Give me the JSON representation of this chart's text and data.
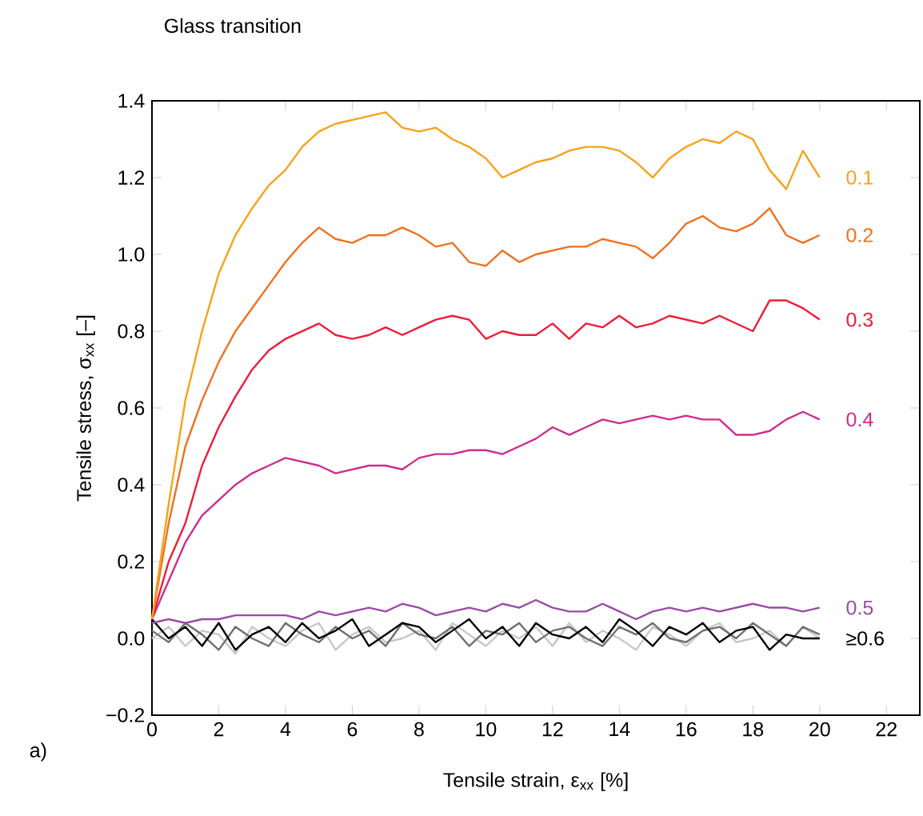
{
  "chart_data": {
    "type": "line",
    "title": "Glass transition",
    "xlabel": "Tensile strain, ε$_{xx}$ [%]",
    "ylabel": "Tensile stress, σ$_{xx}$ [–]",
    "annotations": [
      "a)"
    ],
    "x": [
      0,
      0.5,
      1,
      1.5,
      2,
      2.5,
      3,
      3.5,
      4,
      4.5,
      5,
      5.5,
      6,
      6.5,
      7,
      7.5,
      8,
      8.5,
      9,
      9.5,
      10,
      10.5,
      11,
      11.5,
      12,
      12.5,
      13,
      13.5,
      14,
      14.5,
      15,
      15.5,
      16,
      16.5,
      17,
      17.5,
      18,
      18.5,
      19,
      19.5,
      20
    ],
    "xlim": [
      0,
      23
    ],
    "xticks": [
      0,
      2,
      4,
      6,
      8,
      10,
      12,
      14,
      16,
      18,
      20,
      22
    ],
    "ylim": [
      -0.2,
      1.4
    ],
    "yticks": [
      {
        "value": -0.2,
        "label": "−0.2"
      },
      {
        "value": 0,
        "label": "0.0"
      },
      {
        "value": 0.2,
        "label": "0.2"
      },
      {
        "value": 0.4,
        "label": "0.4"
      },
      {
        "value": 0.6,
        "label": "0.6"
      },
      {
        "value": 0.8,
        "label": "0.8"
      },
      {
        "value": 1.0,
        "label": "1.0"
      },
      {
        "value": 1.2,
        "label": "1.2"
      },
      {
        "value": 1.4,
        "label": "1.4"
      }
    ],
    "series": [
      {
        "color": "#c8c8c8",
        "values": [
          0.0,
          0.03,
          -0.02,
          0.02,
          0.01,
          -0.04,
          0.03,
          0.0,
          -0.02,
          0.02,
          0.04,
          -0.03,
          0.01,
          0.03,
          -0.01,
          0.0,
          0.02,
          -0.03,
          0.04,
          0.01,
          -0.02,
          0.02,
          0.0,
          0.03,
          -0.02,
          0.04,
          -0.01,
          0.02,
          0.0,
          -0.03,
          0.03,
          0.01,
          -0.02,
          0.02,
          0.04,
          -0.01,
          0.0,
          0.02,
          -0.02,
          0.03,
          0.0
        ]
      },
      {
        "color": "#707070",
        "values": [
          0.02,
          -0.01,
          0.04,
          0.01,
          -0.03,
          0.03,
          0.0,
          -0.02,
          0.04,
          0.01,
          -0.01,
          0.03,
          0.0,
          0.02,
          -0.02,
          0.04,
          0.01,
          0.0,
          0.03,
          -0.02,
          0.02,
          0.01,
          0.04,
          -0.01,
          0.02,
          0.03,
          0.0,
          -0.02,
          0.03,
          0.01,
          0.04,
          0.0,
          -0.01,
          0.02,
          0.03,
          0.0,
          0.04,
          0.01,
          -0.02,
          0.03,
          0.01
        ]
      },
      {
        "name": "≥0.6",
        "color": "#000000",
        "values": [
          0.05,
          0.0,
          0.03,
          -0.02,
          0.04,
          -0.03,
          0.01,
          0.03,
          -0.01,
          0.04,
          0.0,
          0.02,
          0.05,
          -0.02,
          0.01,
          0.04,
          0.03,
          -0.01,
          0.02,
          0.05,
          0.0,
          0.03,
          -0.02,
          0.04,
          0.01,
          0.0,
          0.03,
          -0.01,
          0.05,
          0.02,
          -0.02,
          0.03,
          0.01,
          0.04,
          -0.01,
          0.02,
          0.03,
          -0.03,
          0.01,
          0.0,
          0.0
        ]
      },
      {
        "name": "0.5",
        "color": "#9b4aa8",
        "values": [
          0.04,
          0.05,
          0.04,
          0.05,
          0.05,
          0.06,
          0.06,
          0.06,
          0.06,
          0.05,
          0.07,
          0.06,
          0.07,
          0.08,
          0.07,
          0.09,
          0.08,
          0.06,
          0.07,
          0.08,
          0.07,
          0.09,
          0.08,
          0.1,
          0.08,
          0.07,
          0.07,
          0.09,
          0.07,
          0.05,
          0.07,
          0.08,
          0.07,
          0.08,
          0.07,
          0.08,
          0.09,
          0.08,
          0.08,
          0.07,
          0.08
        ]
      },
      {
        "name": "0.4",
        "color": "#cc2e8f",
        "values": [
          0.05,
          0.15,
          0.25,
          0.32,
          0.36,
          0.4,
          0.43,
          0.45,
          0.47,
          0.46,
          0.45,
          0.43,
          0.44,
          0.45,
          0.45,
          0.44,
          0.47,
          0.48,
          0.48,
          0.49,
          0.49,
          0.48,
          0.5,
          0.52,
          0.55,
          0.53,
          0.55,
          0.57,
          0.56,
          0.57,
          0.58,
          0.57,
          0.58,
          0.57,
          0.57,
          0.53,
          0.53,
          0.54,
          0.57,
          0.59,
          0.57
        ]
      },
      {
        "name": "0.3",
        "color": "#ee1c3a",
        "values": [
          0.05,
          0.2,
          0.3,
          0.45,
          0.55,
          0.63,
          0.7,
          0.75,
          0.78,
          0.8,
          0.82,
          0.79,
          0.78,
          0.79,
          0.81,
          0.79,
          0.81,
          0.83,
          0.84,
          0.83,
          0.78,
          0.8,
          0.79,
          0.79,
          0.82,
          0.78,
          0.82,
          0.81,
          0.84,
          0.81,
          0.82,
          0.84,
          0.83,
          0.82,
          0.84,
          0.82,
          0.8,
          0.88,
          0.88,
          0.86,
          0.83
        ]
      },
      {
        "name": "0.2",
        "color": "#f07020",
        "values": [
          0.05,
          0.3,
          0.5,
          0.62,
          0.72,
          0.8,
          0.86,
          0.92,
          0.98,
          1.03,
          1.07,
          1.04,
          1.03,
          1.05,
          1.05,
          1.07,
          1.05,
          1.02,
          1.03,
          0.98,
          0.97,
          1.01,
          0.98,
          1.0,
          1.01,
          1.02,
          1.02,
          1.04,
          1.03,
          1.02,
          0.99,
          1.03,
          1.08,
          1.1,
          1.07,
          1.06,
          1.08,
          1.12,
          1.05,
          1.03,
          1.05
        ]
      },
      {
        "name": "0.1",
        "color": "#f7a21b",
        "values": [
          0.05,
          0.35,
          0.62,
          0.8,
          0.95,
          1.05,
          1.12,
          1.18,
          1.22,
          1.28,
          1.32,
          1.34,
          1.35,
          1.36,
          1.37,
          1.33,
          1.32,
          1.33,
          1.3,
          1.28,
          1.25,
          1.2,
          1.22,
          1.24,
          1.25,
          1.27,
          1.28,
          1.28,
          1.27,
          1.24,
          1.2,
          1.25,
          1.28,
          1.3,
          1.29,
          1.32,
          1.3,
          1.22,
          1.17,
          1.27,
          1.2
        ]
      }
    ]
  }
}
